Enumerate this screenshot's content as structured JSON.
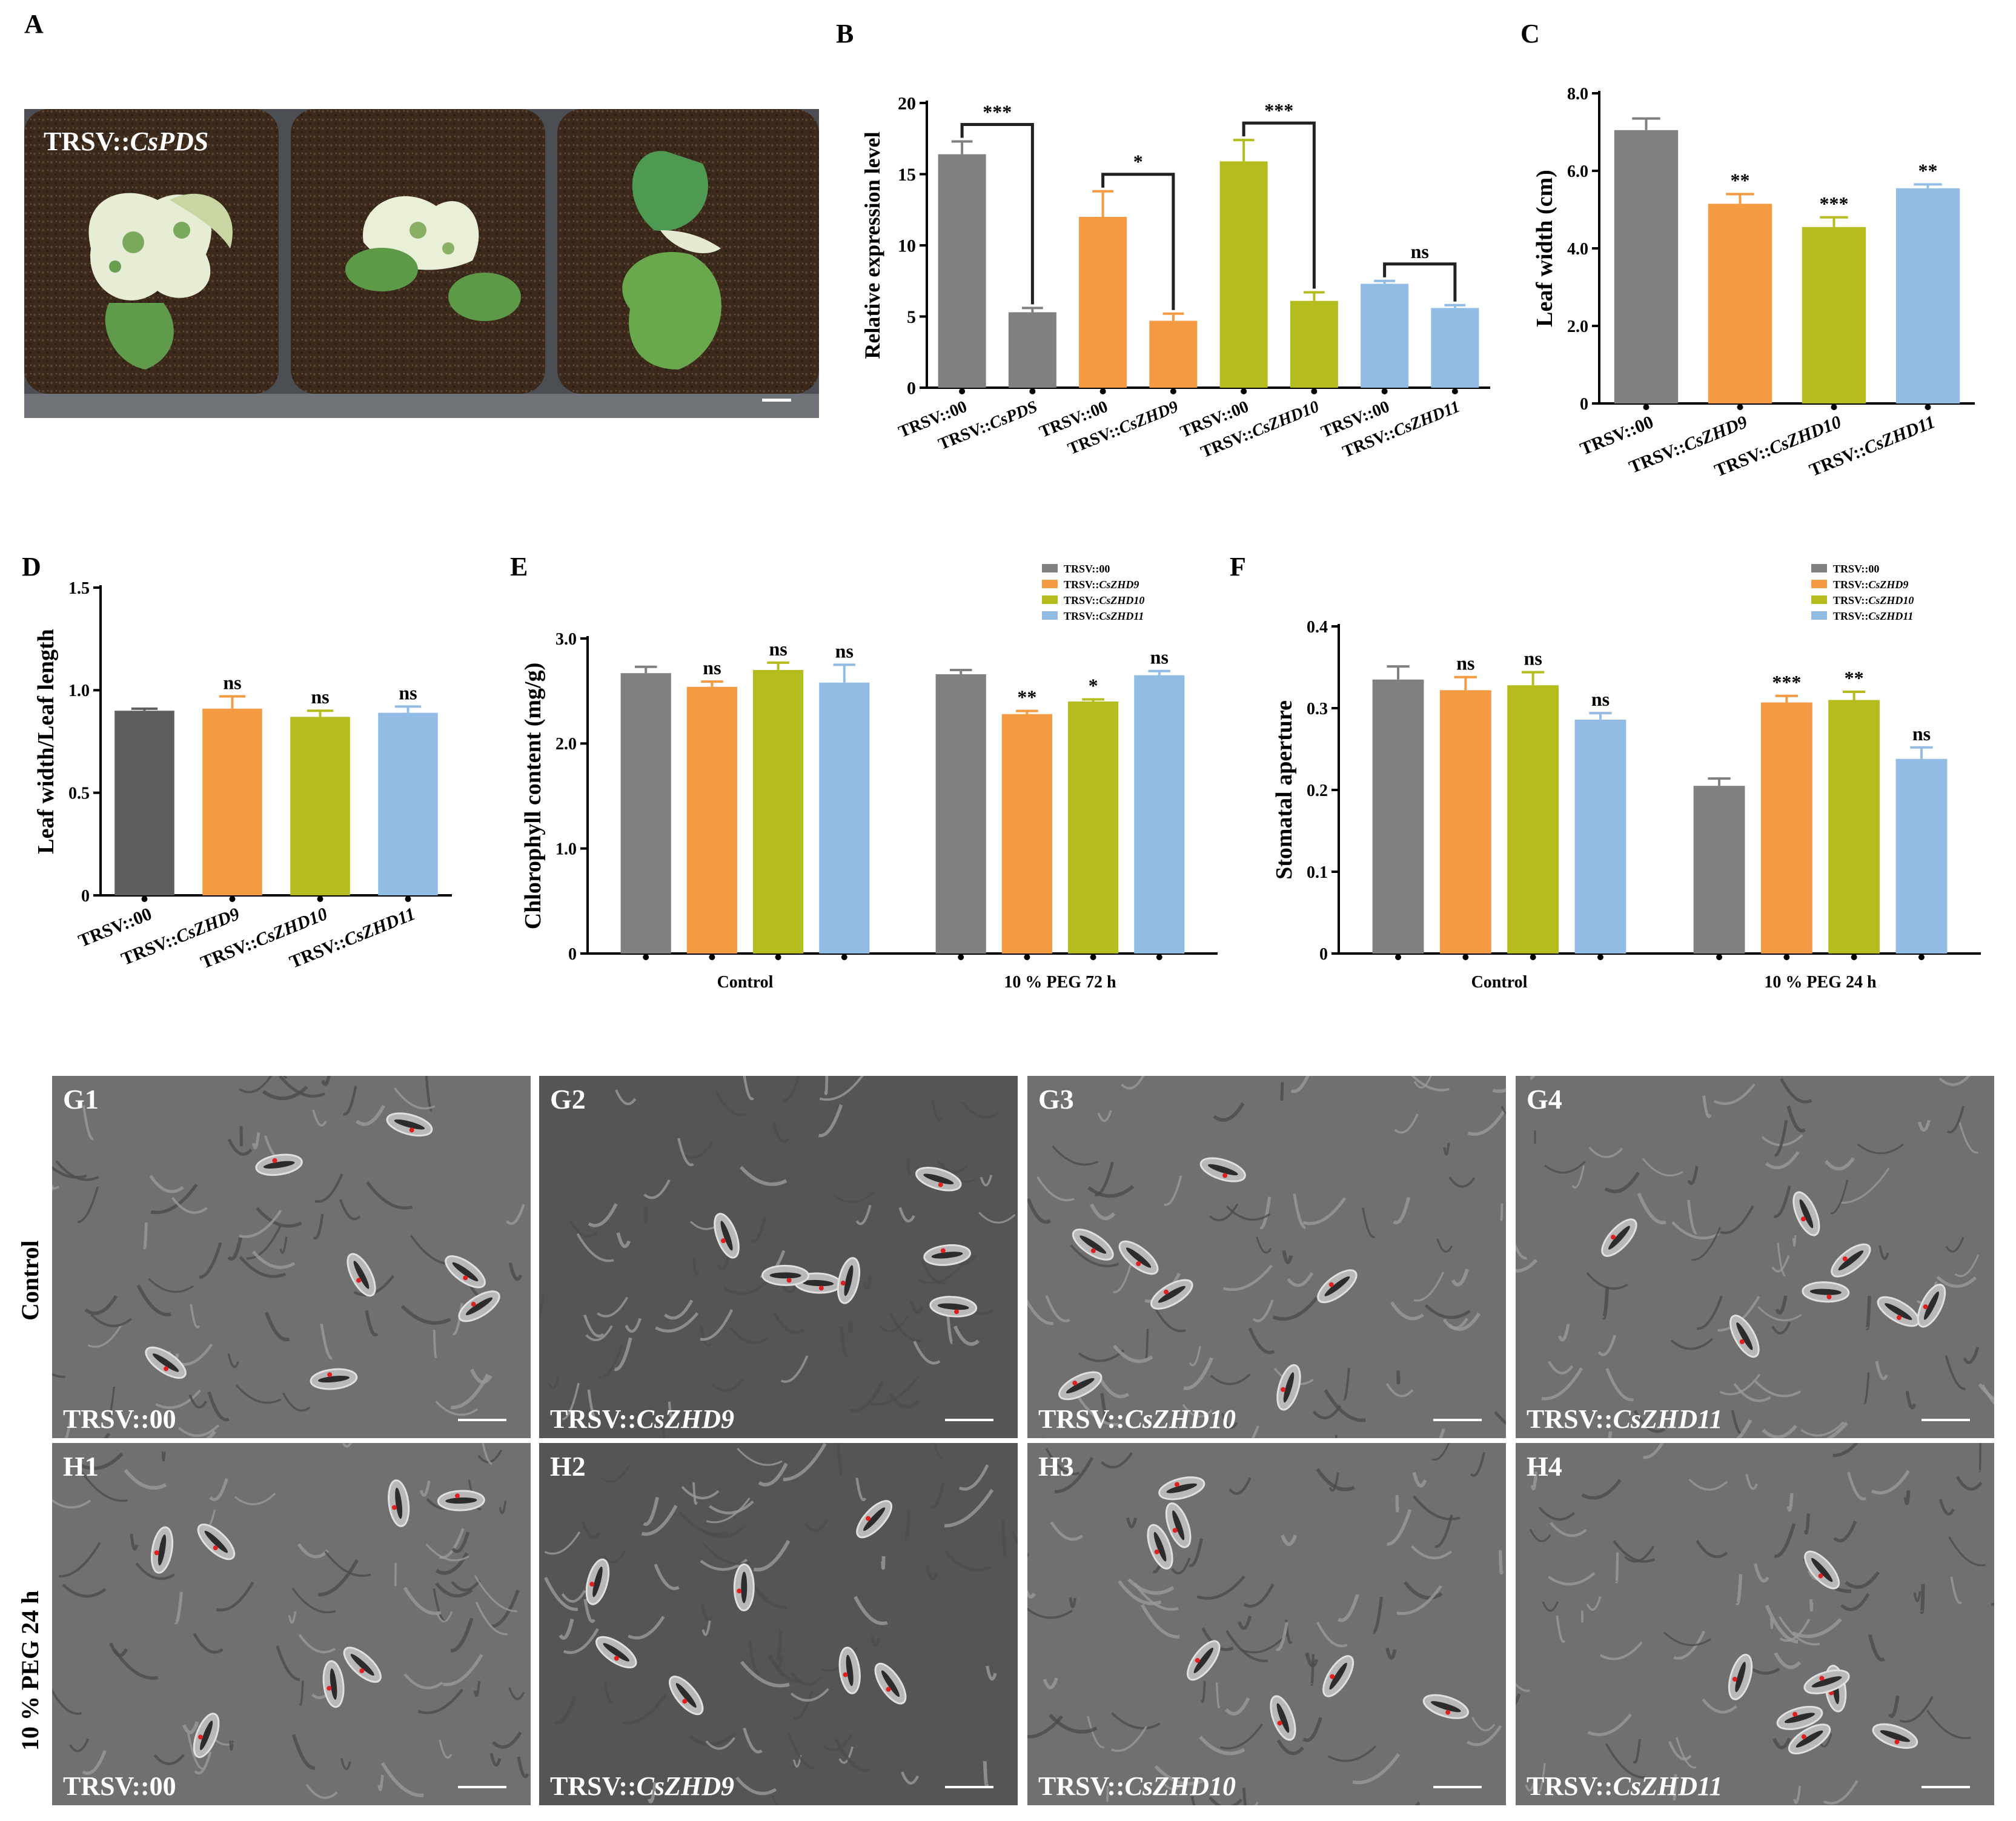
{
  "panel_letters": {
    "A": "A",
    "B": "B",
    "C": "C",
    "D": "D",
    "E": "E",
    "F": "F"
  },
  "photo_A": {
    "label_prefix": "TRSV::",
    "label_gene": "CsPDS"
  },
  "colors": {
    "gray": "#808080",
    "orange": "#F39A43",
    "olive": "#B5BC1E",
    "blue": "#92BCE3",
    "darkgray": "#5f5f5f"
  },
  "chart_data": [
    {
      "id": "B",
      "type": "bar",
      "ylabel": "Relative expression level",
      "ylim": [
        0,
        20
      ],
      "yticks": [
        0,
        5,
        10,
        15,
        20
      ],
      "categories": [
        "TRSV::00",
        "TRSV::CsPDS",
        "TRSV::00",
        "TRSV::CsZHD9",
        "TRSV::00",
        "TRSV::CsZHD10",
        "TRSV::00",
        "TRSV::CsZHD11"
      ],
      "values": [
        16.4,
        5.3,
        12.0,
        4.7,
        15.9,
        6.1,
        7.3,
        5.6
      ],
      "errors": [
        0.9,
        0.3,
        1.8,
        0.5,
        1.5,
        0.6,
        0.2,
        0.2
      ],
      "colors": [
        "#808080",
        "#808080",
        "#F39A43",
        "#F39A43",
        "#B5BC1E",
        "#B5BC1E",
        "#92BCE3",
        "#92BCE3"
      ],
      "brackets": [
        {
          "from": 0,
          "to": 1,
          "label": "***"
        },
        {
          "from": 2,
          "to": 3,
          "label": "*"
        },
        {
          "from": 4,
          "to": 5,
          "label": "***"
        },
        {
          "from": 6,
          "to": 7,
          "label": "ns"
        }
      ]
    },
    {
      "id": "C",
      "type": "bar",
      "ylabel": "Leaf width (cm)",
      "ylim": [
        0,
        8
      ],
      "yticks": [
        0,
        2,
        4,
        6,
        8
      ],
      "ytick_labels": [
        "0",
        "2.0",
        "4.0",
        "6.0",
        "8.0"
      ],
      "categories": [
        "TRSV::00",
        "TRSV::CsZHD9",
        "TRSV::CsZHD10",
        "TRSV::CsZHD11"
      ],
      "values": [
        7.05,
        5.15,
        4.55,
        5.55
      ],
      "errors": [
        0.3,
        0.25,
        0.25,
        0.1
      ],
      "colors": [
        "#808080",
        "#F39A43",
        "#B5BC1E",
        "#92BCE3"
      ],
      "annotations": [
        "",
        "**",
        "***",
        "**"
      ]
    },
    {
      "id": "D",
      "type": "bar",
      "ylabel": "Leaf width/Leaf length",
      "ylim": [
        0,
        1.5
      ],
      "yticks": [
        0,
        0.5,
        1.0,
        1.5
      ],
      "ytick_labels": [
        "0",
        "0.5",
        "1.0",
        "1.5"
      ],
      "categories": [
        "TRSV::00",
        "TRSV::CsZHD9",
        "TRSV::CsZHD10",
        "TRSV::CsZHD11"
      ],
      "values": [
        0.9,
        0.91,
        0.87,
        0.89
      ],
      "errors": [
        0.01,
        0.06,
        0.03,
        0.03
      ],
      "colors": [
        "#5f5f5f",
        "#F39A43",
        "#B5BC1E",
        "#92BCE3"
      ],
      "annotations": [
        "",
        "ns",
        "ns",
        "ns"
      ]
    },
    {
      "id": "E",
      "type": "bar",
      "ylabel": "Chlorophyll content (mg/g)",
      "ylim": [
        0,
        3
      ],
      "yticks": [
        0,
        1,
        2,
        3
      ],
      "ytick_labels": [
        "0",
        "1.0",
        "2.0",
        "3.0"
      ],
      "groups": [
        "Control",
        "10 %  PEG  72 h"
      ],
      "series": [
        {
          "name": "TRSV::00",
          "values": [
            2.67,
            2.66
          ],
          "errors": [
            0.06,
            0.04
          ],
          "annotations": [
            "",
            ""
          ]
        },
        {
          "name": "TRSV::CsZHD9",
          "values": [
            2.54,
            2.28
          ],
          "errors": [
            0.05,
            0.03
          ],
          "annotations": [
            "ns",
            "**"
          ]
        },
        {
          "name": "TRSV::CsZHD10",
          "values": [
            2.7,
            2.4
          ],
          "errors": [
            0.07,
            0.02
          ],
          "annotations": [
            "ns",
            "*"
          ]
        },
        {
          "name": "TRSV::CsZHD11",
          "values": [
            2.58,
            2.65
          ],
          "errors": [
            0.17,
            0.04
          ],
          "annotations": [
            "ns",
            "ns"
          ]
        }
      ]
    },
    {
      "id": "F",
      "type": "bar",
      "ylabel": "Stomatal aperture",
      "ylim": [
        0,
        0.4
      ],
      "yticks": [
        0,
        0.1,
        0.2,
        0.3,
        0.4
      ],
      "ytick_labels": [
        "0",
        "0.1",
        "0.2",
        "0.3",
        "0.4"
      ],
      "groups": [
        "Control",
        "10 %  PEG  24 h"
      ],
      "series": [
        {
          "name": "TRSV::00",
          "values": [
            0.335,
            0.205
          ],
          "errors": [
            0.016,
            0.009
          ],
          "annotations": [
            "",
            ""
          ]
        },
        {
          "name": "TRSV::CsZHD9",
          "values": [
            0.322,
            0.307
          ],
          "errors": [
            0.016,
            0.008
          ],
          "annotations": [
            "ns",
            "***"
          ]
        },
        {
          "name": "TRSV::CsZHD10",
          "values": [
            0.328,
            0.31
          ],
          "errors": [
            0.016,
            0.01
          ],
          "annotations": [
            "ns",
            "**"
          ]
        },
        {
          "name": "TRSV::CsZHD11",
          "values": [
            0.286,
            0.238
          ],
          "errors": [
            0.008,
            0.014
          ],
          "annotations": [
            "ns",
            "ns"
          ]
        }
      ]
    }
  ],
  "sem": {
    "row_labels": [
      "Control",
      "10 %  PEG 24 h"
    ],
    "panels": [
      {
        "corner": "G1",
        "prefix": "TRSV::",
        "gene": "00"
      },
      {
        "corner": "G2",
        "prefix": "TRSV::",
        "gene": "CsZHD9"
      },
      {
        "corner": "G3",
        "prefix": "TRSV::",
        "gene": "CsZHD10"
      },
      {
        "corner": "G4",
        "prefix": "TRSV::",
        "gene": "CsZHD11"
      },
      {
        "corner": "H1",
        "prefix": "TRSV::",
        "gene": "00"
      },
      {
        "corner": "H2",
        "prefix": "TRSV::",
        "gene": "CsZHD9"
      },
      {
        "corner": "H3",
        "prefix": "TRSV::",
        "gene": "CsZHD10"
      },
      {
        "corner": "H4",
        "prefix": "TRSV::",
        "gene": "CsZHD11"
      }
    ]
  }
}
